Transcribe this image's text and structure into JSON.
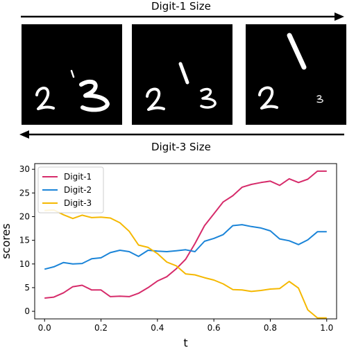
{
  "top_label": "Digit-1 Size",
  "bottom_label": "Digit-3 Size",
  "panels": [
    {
      "digits": [
        "1",
        "2",
        "3"
      ],
      "digit1_level": "small",
      "digit3_level": "large"
    },
    {
      "digits": [
        "1",
        "2",
        "3"
      ],
      "digit1_level": "medium",
      "digit3_level": "medium"
    },
    {
      "digits": [
        "1",
        "2",
        "3"
      ],
      "digit1_level": "large",
      "digit3_level": "small"
    }
  ],
  "arrow_directions": {
    "top": "right",
    "bottom": "left"
  },
  "chart_data": {
    "type": "line",
    "xlabel": "t",
    "ylabel": "scores",
    "xlim": [
      -0.035,
      1.035
    ],
    "ylim": [
      -1.6,
      31.2
    ],
    "xticks": [
      0.0,
      0.2,
      0.4,
      0.6,
      0.8,
      1.0
    ],
    "xtick_labels": [
      "0.0",
      "0.2",
      "0.4",
      "0.6",
      "0.8",
      "1.0"
    ],
    "yticks": [
      0,
      5,
      10,
      15,
      20,
      25,
      30
    ],
    "ytick_labels": [
      "0",
      "5",
      "10",
      "15",
      "20",
      "25",
      "30"
    ],
    "grid": false,
    "legend_position": "top-left",
    "x": [
      0.0,
      0.033,
      0.067,
      0.1,
      0.133,
      0.167,
      0.2,
      0.233,
      0.267,
      0.3,
      0.333,
      0.367,
      0.4,
      0.433,
      0.467,
      0.5,
      0.533,
      0.567,
      0.6,
      0.633,
      0.667,
      0.7,
      0.733,
      0.767,
      0.8,
      0.833,
      0.867,
      0.9,
      0.933,
      0.967,
      1.0
    ],
    "series": [
      {
        "name": "Digit-1",
        "color": "#d62b6a",
        "values": [
          2.8,
          3.0,
          3.9,
          5.2,
          5.5,
          4.5,
          4.5,
          3.1,
          3.2,
          3.1,
          3.8,
          5.0,
          6.4,
          7.3,
          9.0,
          11.0,
          14.3,
          18.1,
          20.6,
          23.1,
          24.4,
          26.2,
          26.8,
          27.2,
          27.5,
          26.6,
          28.0,
          27.2,
          27.9,
          29.6,
          29.6
        ]
      },
      {
        "name": "Digit-2",
        "color": "#1a84d8",
        "values": [
          8.9,
          9.4,
          10.3,
          10.0,
          10.1,
          11.1,
          11.3,
          12.4,
          12.9,
          12.6,
          11.6,
          12.9,
          12.7,
          12.6,
          12.8,
          13.0,
          12.6,
          14.8,
          15.4,
          16.2,
          18.1,
          18.3,
          17.9,
          17.6,
          17.0,
          15.3,
          14.9,
          14.1,
          15.1,
          16.8,
          16.8
        ]
      },
      {
        "name": "Digit-3",
        "color": "#f5b800",
        "values": [
          21.3,
          21.4,
          20.4,
          19.6,
          20.3,
          19.8,
          19.9,
          19.7,
          18.7,
          16.9,
          14.0,
          13.5,
          12.2,
          10.4,
          9.6,
          7.9,
          7.7,
          7.1,
          6.6,
          5.8,
          4.6,
          4.5,
          4.2,
          4.4,
          4.7,
          4.8,
          6.3,
          4.9,
          0.3,
          -1.4,
          -1.4
        ]
      }
    ]
  }
}
